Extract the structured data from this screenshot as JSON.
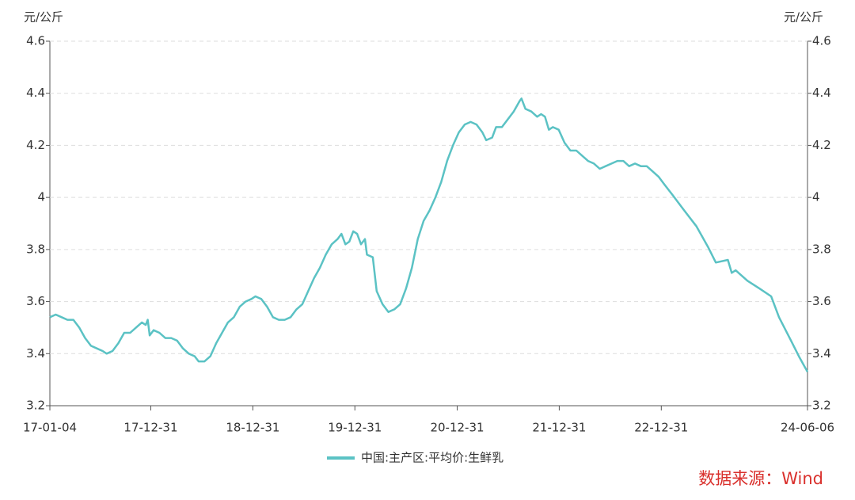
{
  "chart_data": {
    "type": "line",
    "y_unit": "元/公斤",
    "source": "数据来源：Wind",
    "grid": true,
    "legend": "bottom",
    "xlim": [
      "17-01-04",
      "24-06-06"
    ],
    "xticks": [
      "17-01-04",
      "17-12-31",
      "18-12-31",
      "19-12-31",
      "20-12-31",
      "21-12-31",
      "22-12-31",
      "24-06-06"
    ],
    "ylim": [
      3.2,
      4.6
    ],
    "yticks": [
      3.2,
      3.4,
      3.6,
      3.8,
      4,
      4.2,
      4.4,
      4.6
    ],
    "y2lim": [
      3.2,
      4.6
    ],
    "y2ticks": [
      3.2,
      3.4,
      3.6,
      3.8,
      4,
      4.2,
      4.4,
      4.6
    ],
    "x": [
      "17-01-04",
      "17-01-25",
      "17-02-15",
      "17-03-08",
      "17-03-29",
      "17-04-19",
      "17-05-10",
      "17-05-31",
      "17-06-21",
      "17-07-12",
      "17-07-26",
      "17-08-16",
      "17-09-06",
      "17-09-27",
      "17-10-18",
      "17-11-08",
      "17-11-29",
      "17-12-13",
      "17-12-20",
      "17-12-27",
      "18-01-10",
      "18-01-31",
      "18-02-21",
      "18-03-14",
      "18-04-04",
      "18-04-25",
      "18-05-16",
      "18-06-06",
      "18-06-20",
      "18-07-11",
      "18-08-01",
      "18-08-22",
      "18-09-12",
      "18-10-03",
      "18-10-24",
      "18-11-14",
      "18-12-05",
      "18-12-26",
      "19-01-09",
      "19-01-30",
      "19-02-20",
      "19-03-13",
      "19-04-03",
      "19-04-24",
      "19-05-15",
      "19-06-05",
      "19-06-26",
      "19-07-17",
      "19-08-07",
      "19-08-28",
      "19-09-18",
      "19-10-09",
      "19-10-30",
      "19-11-13",
      "19-11-27",
      "19-12-11",
      "19-12-25",
      "20-01-08",
      "20-01-22",
      "20-02-05",
      "20-02-12",
      "20-03-04",
      "20-03-18",
      "20-04-08",
      "20-04-29",
      "20-05-20",
      "20-06-10",
      "20-07-01",
      "20-07-22",
      "20-08-12",
      "20-09-02",
      "20-09-23",
      "20-10-14",
      "20-11-04",
      "20-11-25",
      "20-12-16",
      "21-01-06",
      "21-01-27",
      "21-02-17",
      "21-03-10",
      "21-03-31",
      "21-04-14",
      "21-05-05",
      "21-05-19",
      "21-06-09",
      "21-06-30",
      "21-07-21",
      "21-08-11",
      "21-08-18",
      "21-09-01",
      "21-09-22",
      "21-10-13",
      "21-10-27",
      "21-11-10",
      "21-11-24",
      "21-12-08",
      "21-12-29",
      "22-01-19",
      "22-02-09",
      "22-03-02",
      "22-03-23",
      "22-04-13",
      "22-05-04",
      "22-05-25",
      "22-06-15",
      "22-07-06",
      "22-07-27",
      "22-08-17",
      "22-09-07",
      "22-09-28",
      "22-10-19",
      "22-11-09",
      "22-11-30",
      "22-12-21",
      "23-01-11",
      "23-02-09",
      "23-03-23",
      "23-05-05",
      "23-06-16",
      "23-07-14",
      "23-08-26",
      "23-09-09",
      "23-09-23",
      "23-11-04",
      "23-12-17",
      "24-01-28",
      "24-02-25",
      "24-04-08",
      "24-05-06",
      "24-06-06"
    ],
    "series": [
      {
        "name": "中国:主产区:平均价:生鲜乳",
        "color": "#5bc2c4",
        "values": [
          3.54,
          3.55,
          3.54,
          3.53,
          3.53,
          3.5,
          3.46,
          3.43,
          3.42,
          3.41,
          3.4,
          3.41,
          3.44,
          3.48,
          3.48,
          3.5,
          3.52,
          3.51,
          3.53,
          3.47,
          3.49,
          3.48,
          3.46,
          3.46,
          3.45,
          3.42,
          3.4,
          3.39,
          3.37,
          3.37,
          3.39,
          3.44,
          3.48,
          3.52,
          3.54,
          3.58,
          3.6,
          3.61,
          3.62,
          3.61,
          3.58,
          3.54,
          3.53,
          3.53,
          3.54,
          3.57,
          3.59,
          3.64,
          3.69,
          3.73,
          3.78,
          3.82,
          3.84,
          3.86,
          3.82,
          3.83,
          3.87,
          3.86,
          3.82,
          3.84,
          3.78,
          3.77,
          3.64,
          3.59,
          3.56,
          3.57,
          3.59,
          3.65,
          3.73,
          3.84,
          3.91,
          3.95,
          4.0,
          4.06,
          4.14,
          4.2,
          4.25,
          4.28,
          4.29,
          4.28,
          4.25,
          4.22,
          4.23,
          4.27,
          4.27,
          4.3,
          4.33,
          4.37,
          4.38,
          4.34,
          4.33,
          4.31,
          4.32,
          4.31,
          4.26,
          4.27,
          4.26,
          4.21,
          4.18,
          4.18,
          4.16,
          4.14,
          4.13,
          4.11,
          4.12,
          4.13,
          4.14,
          4.14,
          4.12,
          4.13,
          4.12,
          4.12,
          4.1,
          4.08,
          4.05,
          4.01,
          3.95,
          3.89,
          3.81,
          3.75,
          3.76,
          3.71,
          3.72,
          3.68,
          3.65,
          3.62,
          3.54,
          3.45,
          3.39,
          3.33
        ]
      }
    ]
  }
}
